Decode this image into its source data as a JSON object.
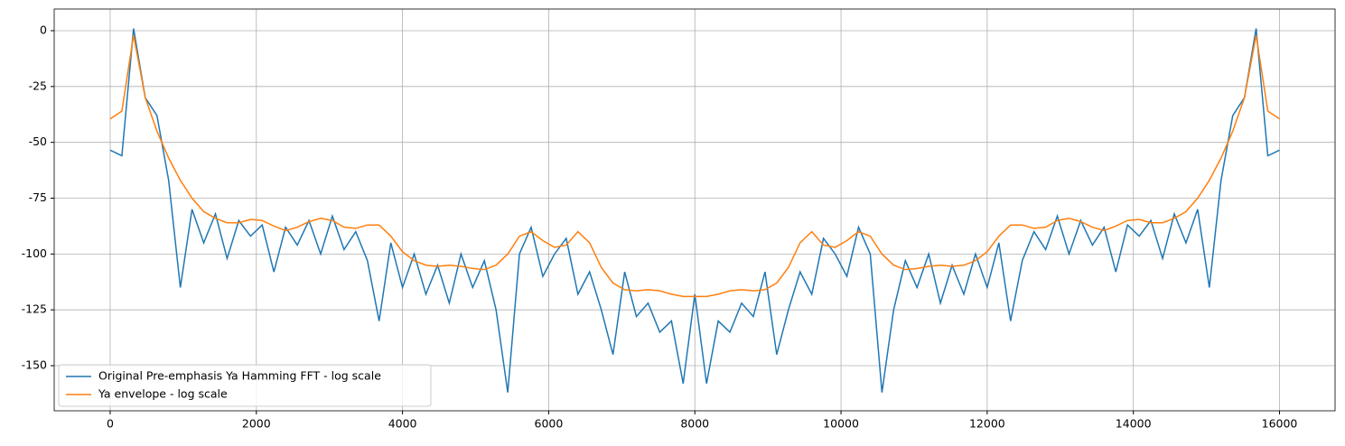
{
  "chart_data": {
    "type": "line",
    "x": [
      0,
      160,
      320,
      480,
      640,
      800,
      960,
      1120,
      1280,
      1440,
      1600,
      1760,
      1920,
      2080,
      2240,
      2400,
      2560,
      2720,
      2880,
      3040,
      3200,
      3360,
      3520,
      3680,
      3840,
      4000,
      4160,
      4320,
      4480,
      4640,
      4800,
      4960,
      5120,
      5280,
      5440,
      5600,
      5760,
      5920,
      6080,
      6240,
      6400,
      6560,
      6720,
      6880,
      7040,
      7200,
      7360,
      7520,
      7680,
      7840,
      8000,
      8160,
      8320,
      8480,
      8640,
      8800,
      8960,
      9120,
      9280,
      9440,
      9600,
      9760,
      9920,
      10080,
      10240,
      10400,
      10560,
      10720,
      10880,
      11040,
      11200,
      11360,
      11520,
      11680,
      11840,
      12000,
      12160,
      12320,
      12480,
      12640,
      12800,
      12960,
      13120,
      13280,
      13440,
      13600,
      13760,
      13920,
      14080,
      14240,
      14400,
      14560,
      14720,
      14880,
      15040,
      15200,
      15360,
      15520,
      15680,
      15840,
      16000
    ],
    "series": [
      {
        "name": "Original Pre-emphasis Ya Hamming FFT - log scale",
        "color": "#1f77b4",
        "values": [
          -53.5,
          -56,
          1,
          -30,
          -38,
          -67,
          -115,
          -80,
          -95,
          -82,
          -102,
          -85,
          -92,
          -87,
          -108,
          -88,
          -96,
          -85,
          -100,
          -83,
          -98,
          -90,
          -103,
          -130,
          -95,
          -115,
          -100,
          -118,
          -105,
          -122,
          -100,
          -115,
          -103,
          -125,
          -162,
          -100,
          -88,
          -110,
          -100,
          -93,
          -118,
          -108,
          -125,
          -145,
          -108,
          -128,
          -122,
          -135,
          -130,
          -158,
          -118,
          -158,
          -130,
          -135,
          -122,
          -128,
          -108,
          -145,
          -125,
          -108,
          -118,
          -93,
          -100,
          -110,
          -88,
          -100,
          -162,
          -125,
          -103,
          -115,
          -100,
          -122,
          -105,
          -118,
          -100,
          -115,
          -95,
          -130,
          -103,
          -90,
          -98,
          -83,
          -100,
          -85,
          -96,
          -88,
          -108,
          -87,
          -92,
          -85,
          -102,
          -82,
          -95,
          -80,
          -115,
          -67,
          -38,
          -30,
          1,
          -56,
          -53.5
        ]
      },
      {
        "name": "Ya envelope - log scale",
        "color": "#ff7f0e",
        "values": [
          -39.5,
          -36,
          -2,
          -30,
          -45,
          -57,
          -67,
          -75,
          -81,
          -84,
          -86,
          -86,
          -84.5,
          -85,
          -87.5,
          -89.5,
          -88,
          -85.5,
          -84,
          -85,
          -88,
          -88.5,
          -87,
          -87,
          -92,
          -99,
          -103,
          -105,
          -105.5,
          -105,
          -105.5,
          -106.5,
          -107,
          -105,
          -100,
          -92,
          -90,
          -94,
          -97,
          -96,
          -90,
          -95,
          -106,
          -113,
          -116,
          -116.5,
          -116,
          -116.5,
          -118,
          -119,
          -119,
          -119,
          -118,
          -116.5,
          -116,
          -116.5,
          -116,
          -113,
          -106,
          -95,
          -90,
          -96,
          -97,
          -94,
          -90,
          -92,
          -100,
          -105,
          -107,
          -106.5,
          -105.5,
          -105,
          -105.5,
          -105,
          -103,
          -99,
          -92,
          -87,
          -87,
          -88.5,
          -88,
          -85,
          -84,
          -85.5,
          -88,
          -89.5,
          -87.5,
          -85,
          -84.5,
          -86,
          -86,
          -84,
          -81,
          -75,
          -67,
          -57,
          -45,
          -30,
          -2,
          -36,
          -39.5
        ]
      }
    ],
    "xlim": [
      -766,
      16760
    ],
    "ylim": [
      -170.2,
      9.7
    ],
    "xticks": [
      0,
      2000,
      4000,
      6000,
      8000,
      10000,
      12000,
      14000,
      16000
    ],
    "yticks": [
      -150,
      -125,
      -100,
      -75,
      -50,
      -25,
      0
    ],
    "grid": true,
    "legend": "lower left"
  }
}
